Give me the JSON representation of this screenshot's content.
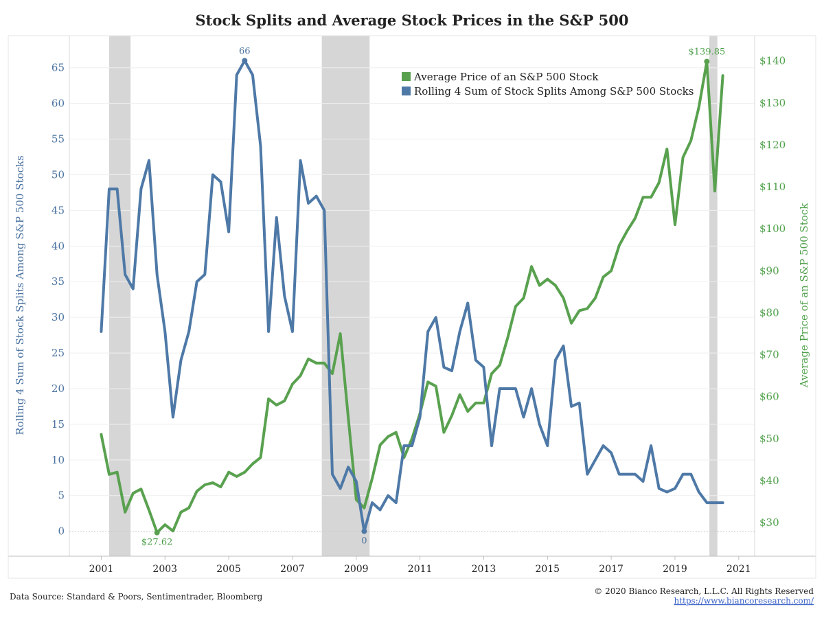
{
  "chart_data": {
    "type": "line",
    "title": "Stock Splits and Average Stock Prices in the S&P 500",
    "ylabel_left": "Rolling 4 Sum of Stock Splits Among S&P 500 Stocks",
    "ylabel_right": "Average Price of an S&P 500 Stock",
    "xlim": [
      2000.0,
      2021.5
    ],
    "ylim_left": [
      -3.5,
      69.5
    ],
    "ylim_right": [
      22.0,
      146.0
    ],
    "x_ticks": [
      "2001",
      "2003",
      "2005",
      "2007",
      "2009",
      "2011",
      "2013",
      "2015",
      "2017",
      "2019",
      "2021"
    ],
    "x_tick_values": [
      2001,
      2003,
      2005,
      2007,
      2009,
      2011,
      2013,
      2015,
      2017,
      2019,
      2021
    ],
    "y_ticks_left": [
      "0",
      "5",
      "10",
      "15",
      "20",
      "25",
      "30",
      "35",
      "40",
      "45",
      "50",
      "55",
      "60",
      "65"
    ],
    "y_tick_values_left": [
      0,
      5,
      10,
      15,
      20,
      25,
      30,
      35,
      40,
      45,
      50,
      55,
      60,
      65
    ],
    "y_ticks_right": [
      "$30",
      "$40",
      "$50",
      "$60",
      "$70",
      "$80",
      "$90",
      "$100",
      "$110",
      "$120",
      "$130",
      "$140"
    ],
    "y_tick_values_right": [
      30,
      40,
      50,
      60,
      70,
      80,
      90,
      100,
      110,
      120,
      130,
      140
    ],
    "recessions": [
      [
        2001.25,
        2001.92
      ],
      [
        2007.92,
        2009.42
      ],
      [
        2020.08,
        2020.33
      ]
    ],
    "series": [
      {
        "name": "Average Price of an S&P 500 Stock",
        "axis": "right",
        "color": "#59a14f",
        "x": [
          2001.0,
          2001.25,
          2001.5,
          2001.75,
          2002.0,
          2002.25,
          2002.5,
          2002.75,
          2003.0,
          2003.25,
          2003.5,
          2003.75,
          2004.0,
          2004.25,
          2004.5,
          2004.75,
          2005.0,
          2005.25,
          2005.5,
          2005.75,
          2006.0,
          2006.25,
          2006.5,
          2006.75,
          2007.0,
          2007.25,
          2007.5,
          2007.75,
          2008.0,
          2008.25,
          2008.5,
          2008.75,
          2009.0,
          2009.25,
          2009.5,
          2009.75,
          2010.0,
          2010.25,
          2010.5,
          2010.75,
          2011.0,
          2011.25,
          2011.5,
          2011.75,
          2012.0,
          2012.25,
          2012.5,
          2012.75,
          2013.0,
          2013.25,
          2013.5,
          2013.75,
          2014.0,
          2014.25,
          2014.5,
          2014.75,
          2015.0,
          2015.25,
          2015.5,
          2015.75,
          2016.0,
          2016.25,
          2016.5,
          2016.75,
          2017.0,
          2017.25,
          2017.5,
          2017.75,
          2018.0,
          2018.25,
          2018.5,
          2018.75,
          2019.0,
          2019.25,
          2019.5,
          2019.75,
          2020.0,
          2020.25,
          2020.5
        ],
        "values": [
          51.0,
          41.5,
          42.0,
          32.5,
          37.0,
          38.0,
          33.0,
          27.62,
          29.5,
          28.0,
          32.5,
          33.5,
          37.5,
          39.0,
          39.5,
          38.5,
          42.0,
          41.0,
          42.0,
          44.0,
          45.5,
          59.5,
          58.0,
          59.0,
          63.0,
          65.0,
          69.0,
          68.0,
          68.0,
          65.5,
          75.0,
          55.0,
          35.5,
          33.5,
          40.5,
          48.5,
          50.5,
          51.5,
          45.5,
          50.0,
          56.0,
          63.5,
          62.5,
          51.5,
          55.5,
          60.5,
          56.5,
          58.5,
          58.5,
          65.5,
          67.5,
          74.0,
          81.5,
          83.5,
          91.0,
          86.5,
          88.0,
          86.5,
          83.5,
          77.5,
          80.5,
          81.0,
          83.5,
          88.5,
          90.0,
          96.0,
          99.5,
          102.5,
          107.5,
          107.5,
          111.0,
          119.0,
          101.0,
          117.0,
          121.0,
          129.0,
          139.85,
          109.0,
          136.5
        ]
      },
      {
        "name": "Rolling 4 Sum of Stock Splits Among S&P 500 Stocks",
        "axis": "left",
        "color": "#4e79a7",
        "x": [
          2001.0,
          2001.25,
          2001.5,
          2001.75,
          2002.0,
          2002.25,
          2002.5,
          2002.75,
          2003.0,
          2003.25,
          2003.5,
          2003.75,
          2004.0,
          2004.25,
          2004.5,
          2004.75,
          2005.0,
          2005.25,
          2005.5,
          2005.75,
          2006.0,
          2006.25,
          2006.5,
          2006.75,
          2007.0,
          2007.25,
          2007.5,
          2007.75,
          2008.0,
          2008.25,
          2008.5,
          2008.75,
          2009.0,
          2009.25,
          2009.5,
          2009.75,
          2010.0,
          2010.25,
          2010.5,
          2010.75,
          2011.0,
          2011.25,
          2011.5,
          2011.75,
          2012.0,
          2012.25,
          2012.5,
          2012.75,
          2013.0,
          2013.25,
          2013.5,
          2013.75,
          2014.0,
          2014.25,
          2014.5,
          2014.75,
          2015.0,
          2015.25,
          2015.5,
          2015.75,
          2016.0,
          2016.25,
          2016.5,
          2016.75,
          2017.0,
          2017.25,
          2017.5,
          2017.75,
          2018.0,
          2018.25,
          2018.5,
          2018.75,
          2019.0,
          2019.25,
          2019.5,
          2019.75,
          2020.0,
          2020.25,
          2020.5
        ],
        "values": [
          28,
          48,
          48,
          36,
          34,
          48,
          52,
          36,
          28,
          16,
          24,
          28,
          35,
          36,
          50,
          49,
          42,
          64,
          66,
          64,
          54,
          28,
          44,
          33,
          28,
          52,
          46,
          47,
          45,
          8,
          6,
          9,
          7,
          0,
          4,
          3,
          5,
          4,
          12,
          12,
          16,
          28,
          30,
          23,
          22.5,
          28,
          32,
          24,
          23,
          12,
          20,
          20,
          20,
          16,
          20,
          15,
          12,
          24,
          26,
          17.5,
          18,
          8,
          10,
          12,
          11,
          8,
          8,
          8,
          7,
          12,
          6,
          5.5,
          6,
          8,
          8,
          5.5,
          4,
          4,
          4
        ]
      }
    ],
    "annotations": [
      {
        "label": "66",
        "x": 2005.5,
        "y": 66,
        "axis": "left"
      },
      {
        "label": "0",
        "x": 2009.25,
        "y": 0,
        "axis": "left"
      },
      {
        "label": "$27.62",
        "x": 2002.75,
        "y": 27.62,
        "axis": "right"
      },
      {
        "label": "$139.85",
        "x": 2020.0,
        "y": 139.85,
        "axis": "right"
      }
    ],
    "legend": {
      "position": "top-right",
      "entries": [
        "Average Price of an S&P 500 Stock",
        "Rolling 4 Sum of Stock Splits Among S&P 500 Stocks"
      ]
    },
    "grid": true
  },
  "footer": {
    "source": "Data Source: Standard & Poors, Sentimentrader, Bloomberg",
    "copyright": "© 2020 Bianco Research, L.L.C. All Rights Reserved",
    "url": "https://www.biancoresearch.com/"
  }
}
